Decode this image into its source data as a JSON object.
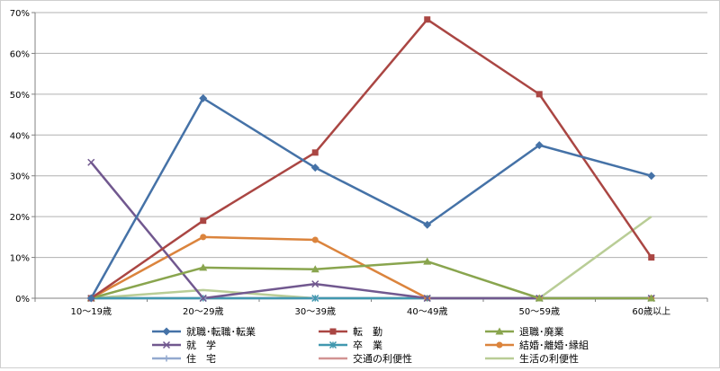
{
  "chart_data": {
    "type": "line",
    "title": "",
    "xlabel": "",
    "ylabel": "",
    "categories": [
      "10～19歳",
      "20～29歳",
      "30～39歳",
      "40～49歳",
      "50～59歳",
      "60歳以上"
    ],
    "y_ticks": [
      "0%",
      "10%",
      "20%",
      "30%",
      "40%",
      "50%",
      "60%",
      "70%"
    ],
    "ylim": [
      0,
      70
    ],
    "grid": "horizontal",
    "legend_position": "bottom",
    "series": [
      {
        "name": "就職･転職･転業",
        "color": "#4572A7",
        "marker": "diamond",
        "values": [
          0,
          49,
          32,
          18,
          37.5,
          30
        ]
      },
      {
        "name": "転　勤",
        "color": "#AA4643",
        "marker": "square",
        "values": [
          0,
          19,
          35.7,
          68.3,
          50,
          10
        ]
      },
      {
        "name": "退職･廃業",
        "color": "#89A54E",
        "marker": "triangle",
        "values": [
          0,
          7.5,
          7.1,
          9,
          0,
          0
        ]
      },
      {
        "name": "就　学",
        "color": "#71588F",
        "marker": "x",
        "values": [
          33.3,
          0,
          3.5,
          0,
          0,
          0
        ]
      },
      {
        "name": "卒　業",
        "color": "#4198AF",
        "marker": "star",
        "values": [
          0,
          0,
          0,
          0,
          0,
          0
        ]
      },
      {
        "name": "結婚･離婚･縁組",
        "color": "#DB843D",
        "marker": "circle",
        "values": [
          0,
          15,
          14.3,
          0,
          0,
          0
        ]
      },
      {
        "name": "住　宅",
        "color": "#93A9CF",
        "marker": "plus",
        "values": [
          0,
          0,
          0,
          0,
          0,
          0
        ]
      },
      {
        "name": "交通の利便性",
        "color": "#D19392",
        "marker": "none",
        "values": [
          0,
          0,
          0,
          0,
          0,
          0
        ]
      },
      {
        "name": "生活の利便性",
        "color": "#B9CD96",
        "marker": "none",
        "values": [
          0,
          2,
          0,
          0,
          0,
          20
        ]
      }
    ]
  }
}
